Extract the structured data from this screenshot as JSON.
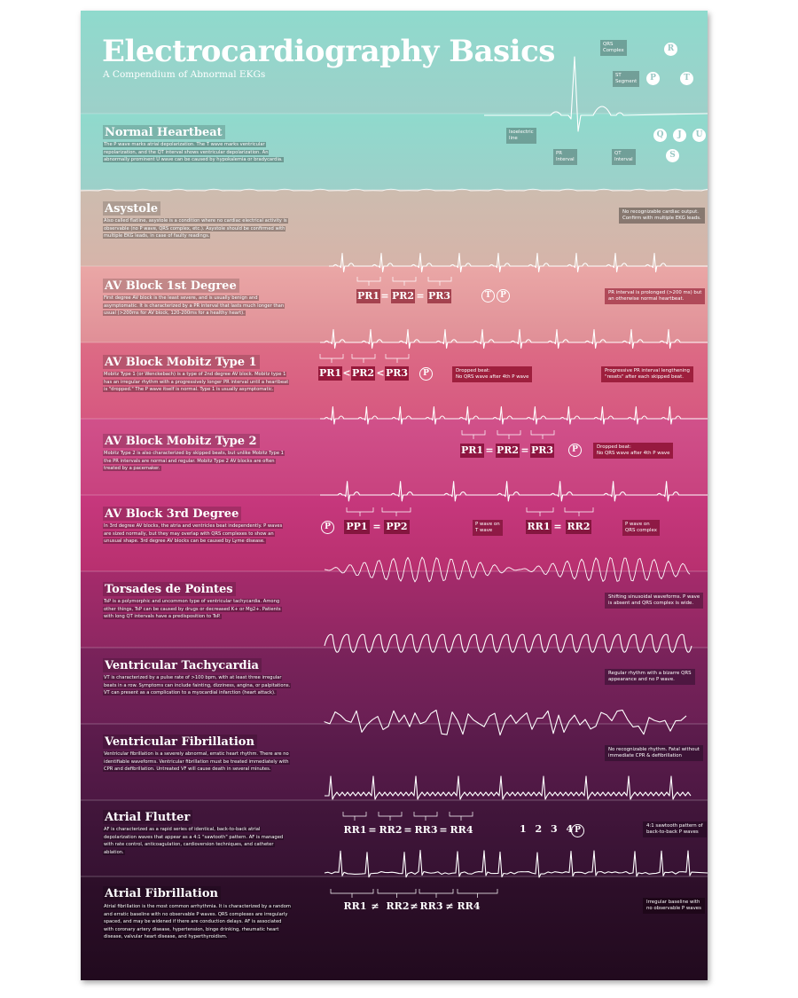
{
  "header": {
    "title": "Electrocardiography Basics",
    "subtitle": "A Compendium of Abnormal EKGs"
  },
  "diagram_labels": {
    "qrs_complex": "QRS\nComplex",
    "st_segment": "ST\nSegment",
    "isoelectric_line": "Isoelectric\nline",
    "pr_interval": "PR\nInterval",
    "qt_interval": "QT\nInterval",
    "waves": [
      "R",
      "P",
      "T",
      "Q",
      "J",
      "U",
      "S"
    ]
  },
  "sections": [
    {
      "title": "Normal Heartbeat",
      "description": "The P wave marks atrial depolarization. The T wave marks ventricular repolarization, and the QT interval shows ventricular depolarization. An abnormally prominent U wave can be caused by hypokalemia or bradycardia."
    },
    {
      "title": "Asystole",
      "description": "Also called flatline, asystole is a condition where no cardiac electrical activity is observable (no P wave, QRS complex, etc.). Asystole should be confirmed with multiple EKG leads, in case of faulty readings.",
      "note": "No recognizable cardiac output.\nConfirm with multiple EKG leads."
    },
    {
      "title": "AV Block 1st Degree",
      "description": "First degree AV block is the least severe, and is usually benign and asymptomatic. It is characterized by a PR interval that lasts much longer than usual (>200ms for AV block, 120-200ms for a healthy heart).",
      "note": "PR interval is prolonged (>200 ms) but\nan otherwise normal heartbeat.",
      "boxes": [
        "PR1",
        "PR2",
        "PR3"
      ],
      "operators": [
        "=",
        "="
      ],
      "circles": [
        "T",
        "P"
      ]
    },
    {
      "title": "AV Block Mobitz Type 1",
      "description": "Mobitz Type 1 (or Wenckebach) is a type of 2nd degree AV block. Mobitz type 1 has an irregular rhythm with a progressively longer PR interval until a heartbeat is \"dropped.\" The P wave itself is normal. Type 1 is usually asymptomatic.",
      "note_left": "Dropped beat:\nNo QRS wave after 4th P wave",
      "note": "Progressive PR interval lengthening\n\"resets\" after each skipped beat.",
      "boxes": [
        "PR1",
        "PR2",
        "PR3"
      ],
      "operators": [
        "<",
        "<"
      ],
      "circles": [
        "P"
      ]
    },
    {
      "title": "AV Block Mobitz Type 2",
      "description": "Mobitz Type 2 is also characterized by skipped beats, but unlike Mobitz Type 1 the PR intervals are normal and regular. Mobitz Type 2 AV blocks are often treated by a pacemaker.",
      "note": "Dropped beat:\nNo QRS wave after 4th P wave",
      "boxes": [
        "PR1",
        "PR2",
        "PR3"
      ],
      "operators": [
        "=",
        "="
      ],
      "circles": [
        "P"
      ]
    },
    {
      "title": "AV Block 3rd Degree",
      "description": "In 3rd degree AV blocks, the atria and ventricles beat independently. P waves are sized normally, but they may overlap with QRS complexes to show an unusual shape. 3rd degree AV blocks can be caused by Lyme disease.",
      "label_left": "P wave on\nT wave",
      "label_right": "P wave on\nQRS complex",
      "boxes": [
        "PP1",
        "PP2",
        "RR1",
        "RR2"
      ],
      "operators": [
        "=",
        "="
      ],
      "circles": [
        "P"
      ]
    },
    {
      "title": "Torsades de Pointes",
      "description": "TsP is a polymorphic and uncommon type of ventricular tachycardia. Among other things, TsP can be caused by drugs or decreased K+ or Mg2+. Patients with long QT intervals have a predisposition to TsP.",
      "note": "Shifting sinusoidal waveforms. P wave\nis absent and QRS complex is wide."
    },
    {
      "title": "Ventricular Tachycardia",
      "description": "VT is characterized by a pulse rate of >100 bpm, with at least three irregular beats in a row. Symptoms can include fainting, dizziness, angina, or palpitations. VT can present as a complication to a myocardial infarction (heart attack).",
      "note": "Regular rhythm with a bizarre QRS\nappearance and no P wave."
    },
    {
      "title": "Ventricular Fibrillation",
      "description": "Ventricular fibrillation is a severely abnormal, erratic heart rhythm. There are no identifiable waveforms. Ventricular fibrillation must be treated immediately with CPR and defibrillation. Untreated VF will cause death in several minutes.",
      "note": "No recognizable rhythm. Fatal without\nimmediate CPR & defibrillation"
    },
    {
      "title": "Atrial Flutter",
      "description": "AF is characterized as a rapid series of identical, back-to-back atrial depolarization waves that appear as a 4:1 \"sawtooth\" pattern. AF is managed with rate control, anticoagulation, cardioversion techniques, and catheter ablation.",
      "note": "4:1 sawtooth pattern of\nback-to-back P waves",
      "boxes": [
        "RR1",
        "RR2",
        "RR3",
        "RR4"
      ],
      "operators": [
        "=",
        "=",
        "="
      ],
      "sequence": "1 2 3 4",
      "circles": [
        "P"
      ]
    },
    {
      "title": "Atrial Fibrillation",
      "description": "Atrial fibrillation is the most common arrhythmia. It is characterized by a random and erratic baseline with no observable P waves. QRS complexes are irregularly spaced, and may be widened if there are conduction delays. AF is associated with coronary artery disease, hypertension, binge drinking, rheumatic heart disease, valvular heart disease, and hyperthyroidism.",
      "note": "Irregular baseline with\nno observable P waves",
      "boxes": [
        "RR1",
        "RR2",
        "RR3",
        "RR4"
      ],
      "operators": [
        "≠",
        "≠",
        "≠"
      ]
    }
  ],
  "colors": {
    "top": "#8ed6cc",
    "normal": "#9bcbc3",
    "asystole": "#c9b8a8",
    "av1": "#e8a3a3",
    "mobitz1": "#d9657e",
    "mobitz2": "#cf4a7d",
    "av3": "#c23575",
    "torsades": "#9a2a66",
    "vtach": "#73225a",
    "vfib": "#561a48",
    "aflutter": "#3b1234",
    "afib": "#2c0d26"
  }
}
